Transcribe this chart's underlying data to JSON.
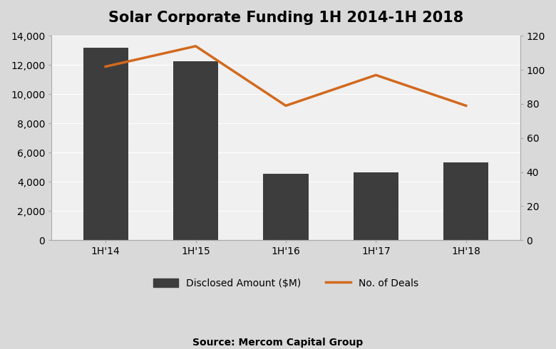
{
  "categories": [
    "1H'14",
    "1H'15",
    "1H'16",
    "1H'17",
    "1H'18"
  ],
  "bar_values": [
    13200,
    12250,
    4550,
    4650,
    5350
  ],
  "line_values": [
    102,
    114,
    79,
    97,
    79
  ],
  "bar_color": "#3d3d3d",
  "line_color": "#d2691e",
  "title": "Solar Corporate Funding 1H 2014-1H 2018",
  "ylim_left": [
    0,
    14000
  ],
  "ylim_right": [
    0,
    120
  ],
  "yticks_left": [
    0,
    2000,
    4000,
    6000,
    8000,
    10000,
    12000,
    14000
  ],
  "yticks_right": [
    0,
    20,
    40,
    60,
    80,
    100,
    120
  ],
  "legend_bar_label": "Disclosed Amount ($M)",
  "legend_line_label": "No. of Deals",
  "source_text": "Source: Mercom Capital Group",
  "outer_background": "#d9d9d9",
  "plot_background": "#f0f0f0",
  "title_fontsize": 15,
  "tick_fontsize": 10,
  "legend_fontsize": 10,
  "source_fontsize": 10,
  "line_width": 2.5,
  "bar_width": 0.5
}
